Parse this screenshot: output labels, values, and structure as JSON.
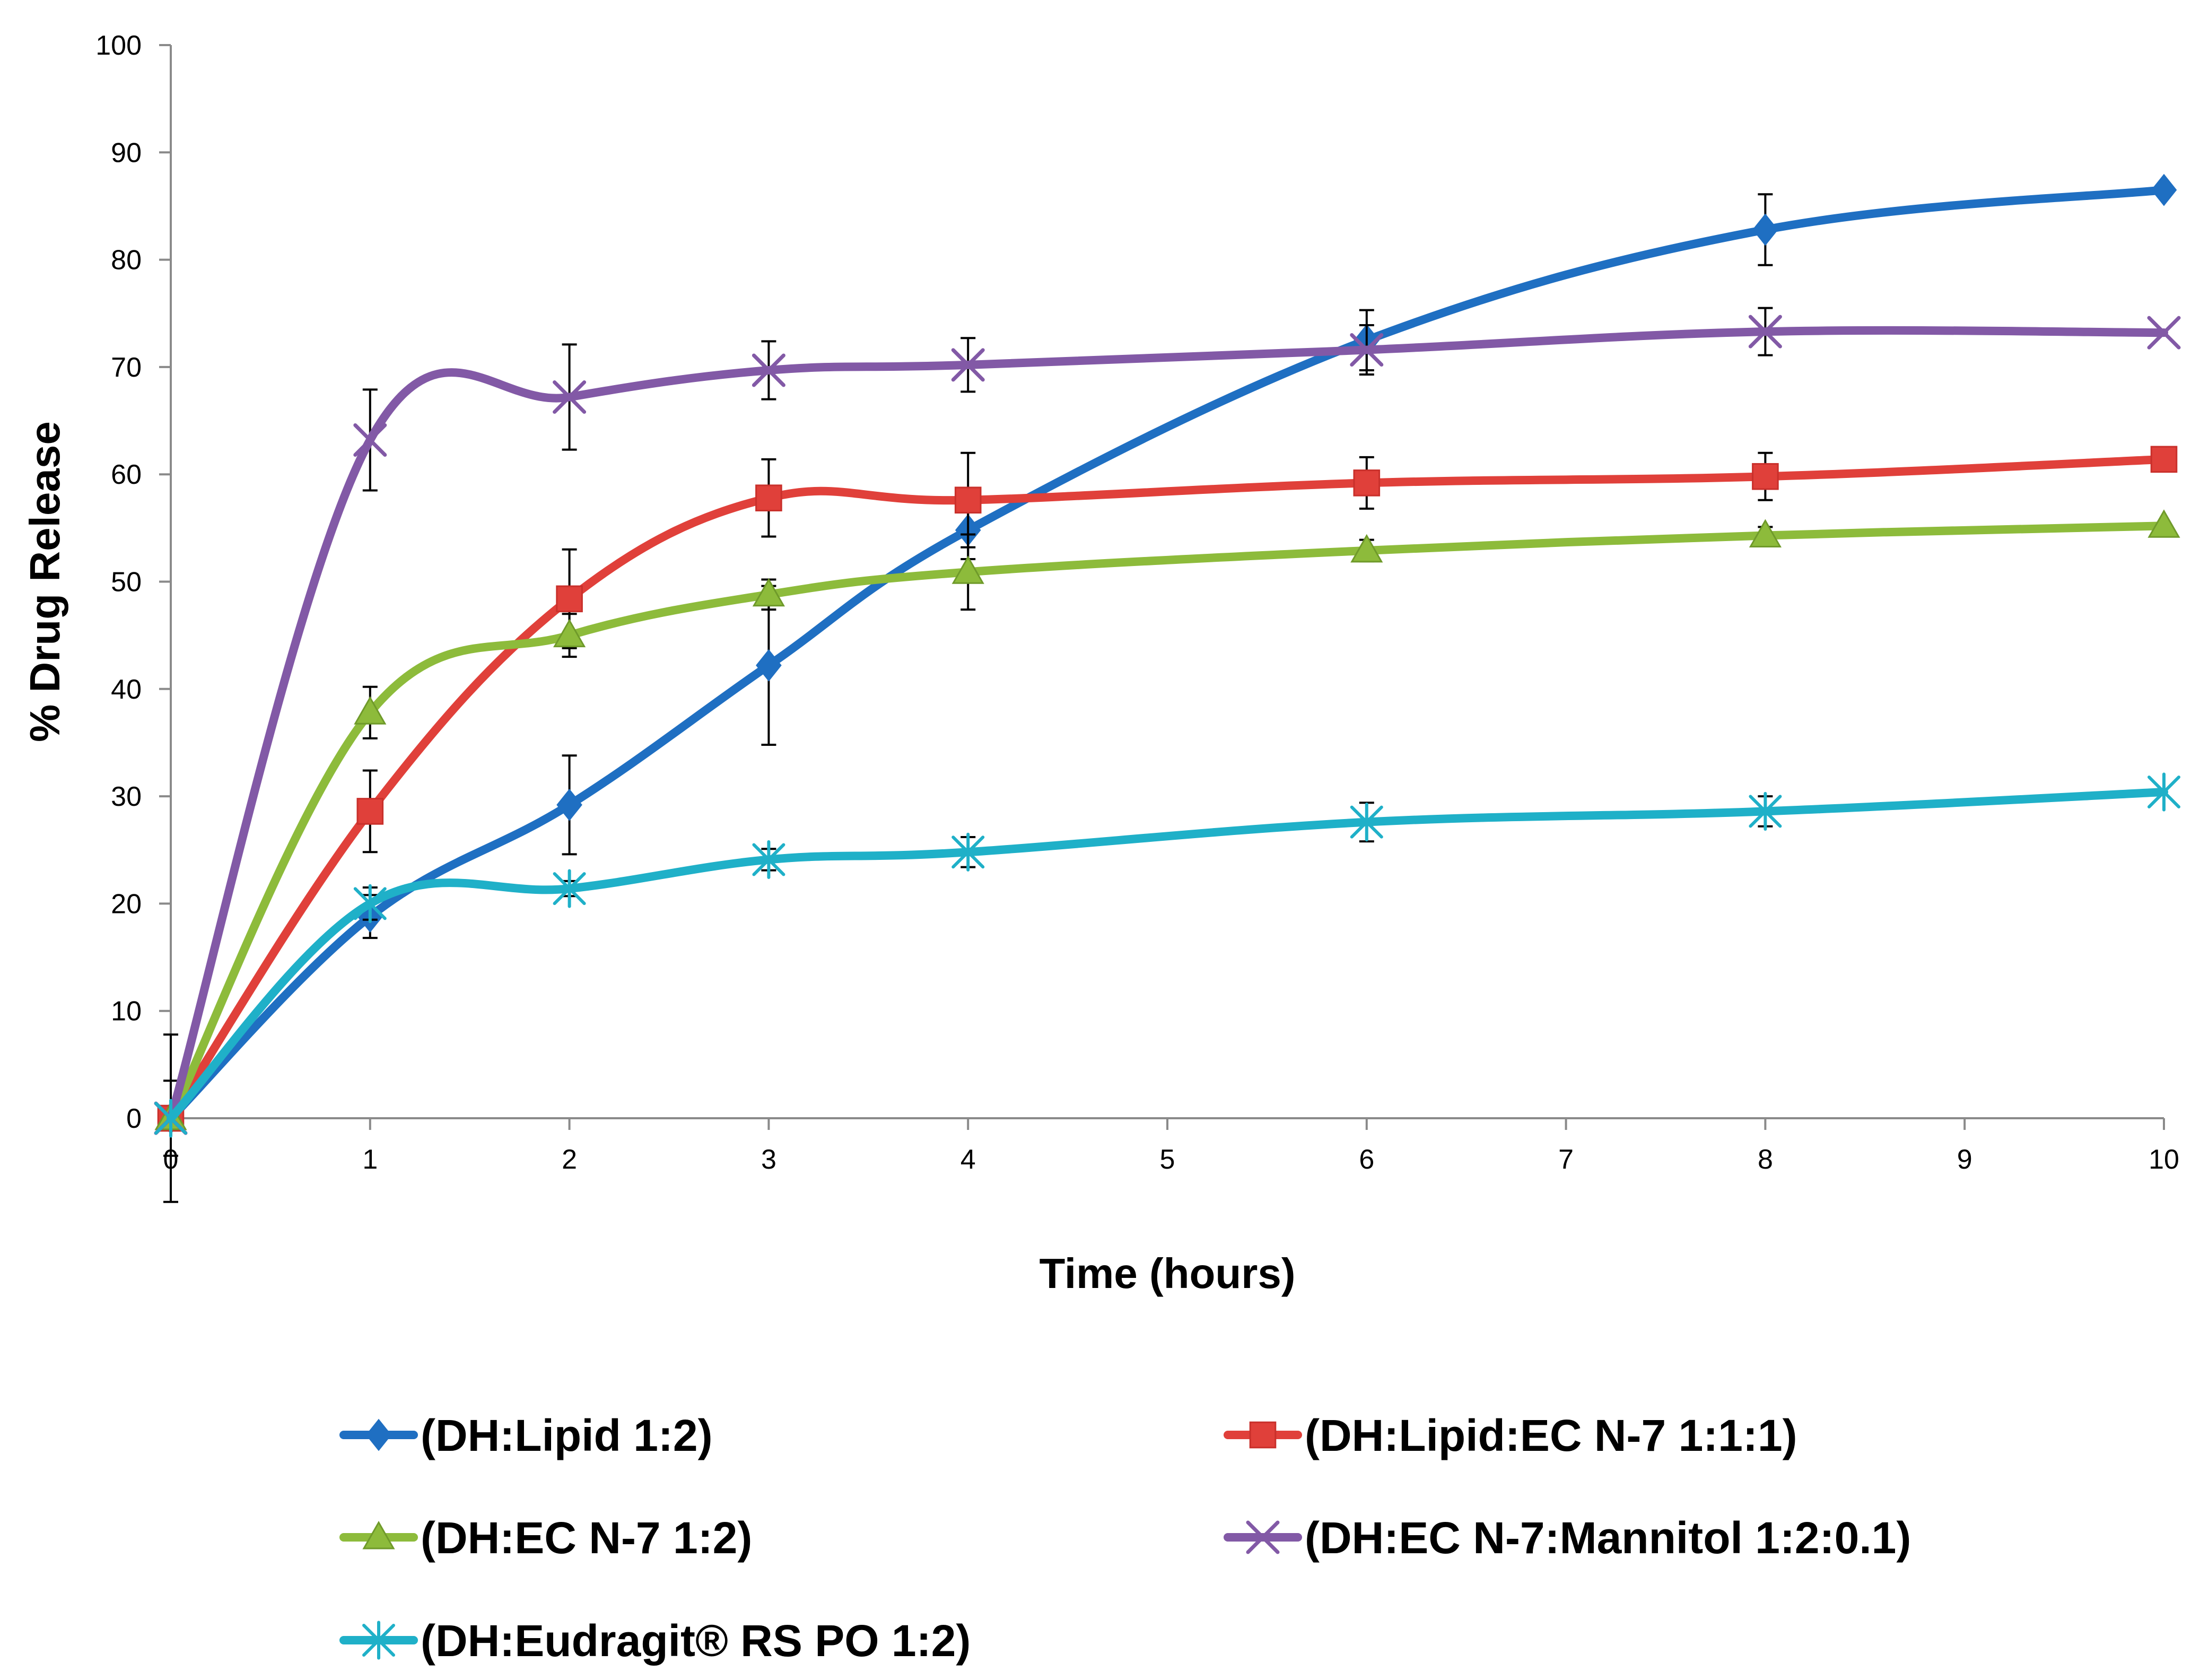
{
  "chart_data": {
    "type": "line",
    "title": "",
    "xlabel": "Time (hours)",
    "ylabel": "% Drug Release",
    "xlim": [
      0,
      10
    ],
    "ylim": [
      0,
      100
    ],
    "x_ticks": [
      0,
      1,
      2,
      3,
      4,
      5,
      6,
      7,
      8,
      9,
      10
    ],
    "y_ticks": [
      0,
      10,
      20,
      30,
      40,
      50,
      60,
      70,
      80,
      90,
      100
    ],
    "grid": false,
    "legend_position": "bottom",
    "x": [
      0,
      1,
      2,
      3,
      4,
      6,
      8,
      10
    ],
    "series": [
      {
        "name": "(DH:Lipid 1:2)",
        "color": "#1F6FC2",
        "marker": "diamond",
        "values": [
          0,
          18.8,
          29.2,
          42.2,
          54.8,
          72.5,
          82.8,
          86.5
        ],
        "errors": [
          3.5,
          2.0,
          4.6,
          7.4,
          2.7,
          2.8,
          3.3,
          0.0
        ]
      },
      {
        "name": "(DH:Lipid:EC N-7 1:1:1)",
        "color": "#E0403A",
        "marker": "square",
        "values": [
          0,
          28.6,
          48.4,
          57.8,
          57.6,
          59.2,
          59.8,
          61.4
        ],
        "errors": [
          0.0,
          3.8,
          4.6,
          3.6,
          4.4,
          2.4,
          2.2,
          0.0
        ]
      },
      {
        "name": "(DH:EC N-7 1:2)",
        "color": "#8DBB3B",
        "marker": "triangle",
        "values": [
          0,
          37.8,
          45.0,
          48.8,
          50.9,
          52.9,
          54.3,
          55.2
        ],
        "errors": [
          0.0,
          2.4,
          2.0,
          1.4,
          3.5,
          1.0,
          0.8,
          0.0
        ]
      },
      {
        "name": "(DH:EC N-7:Mannitol 1:2:0.1)",
        "color": "#8259A6",
        "marker": "x",
        "values": [
          0,
          63.2,
          67.2,
          69.7,
          70.2,
          71.6,
          73.3,
          73.2
        ],
        "errors": [
          7.8,
          4.7,
          4.9,
          2.7,
          2.5,
          2.3,
          2.2,
          0.0
        ]
      },
      {
        "name": "(DH:Eudragit® RS PO 1:2)",
        "color": "#1FB0C8",
        "marker": "asterisk",
        "values": [
          0,
          20.0,
          21.4,
          24.1,
          24.8,
          27.6,
          28.6,
          30.4
        ],
        "errors": [
          0.0,
          1.5,
          0.7,
          1.0,
          1.4,
          1.8,
          1.4,
          0.0
        ]
      }
    ]
  }
}
